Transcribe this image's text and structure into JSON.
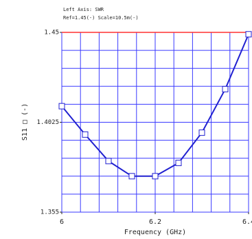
{
  "chart_data": {
    "type": "line",
    "header": [
      "Left Axis: SWR",
      "Ref=1.45(-) Scale=10.5m(-)"
    ],
    "xlabel": "Frequency (GHz)",
    "ylabel": "S11 □ (-)",
    "x": [
      6.0,
      6.05,
      6.1,
      6.15,
      6.2,
      6.25,
      6.3,
      6.35,
      6.4
    ],
    "series": [
      {
        "name": "S11",
        "color": "#2020d0",
        "values": [
          1.411,
          1.396,
          1.382,
          1.374,
          1.374,
          1.381,
          1.397,
          1.42,
          1.449
        ]
      }
    ],
    "xlim": [
      6.0,
      6.4
    ],
    "xticks": [
      {
        "value": 6.0,
        "label": "6"
      },
      6.2,
      6.4
    ],
    "ylim": [
      1.355,
      1.45
    ],
    "yticks": [
      1.355,
      1.4025,
      1.45
    ],
    "xgrid": [
      6.0,
      6.04,
      6.08,
      6.12,
      6.16,
      6.2,
      6.24,
      6.28,
      6.32,
      6.36,
      6.4
    ],
    "ygrid": [
      1.355,
      1.3645,
      1.374,
      1.3835,
      1.393,
      1.4025,
      1.412,
      1.4215,
      1.431,
      1.4405,
      1.45
    ],
    "ref": 1.45,
    "ref_color": "#ff3030",
    "grid_color": "#3a3aff"
  }
}
